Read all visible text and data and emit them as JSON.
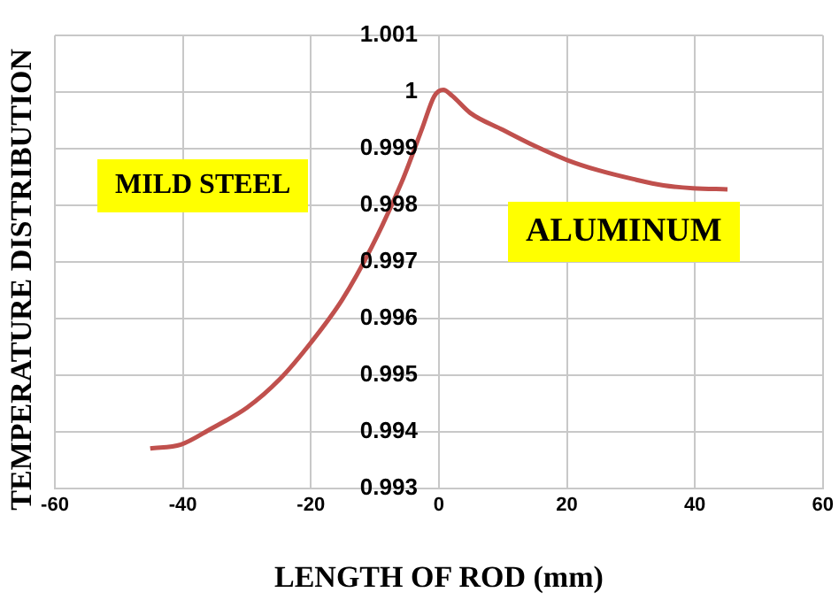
{
  "chart_data": {
    "type": "line",
    "xlabel": "LENGTH OF ROD (mm)",
    "ylabel": "TEMPERATURE DISTRIBUTION",
    "annotations": [
      "MILD STEEL",
      "ALUMINUM"
    ],
    "x": [
      -45.1,
      -40.3,
      -35.6,
      -30,
      -24.9,
      -20,
      -15.1,
      -10.5,
      -5.8,
      -2.6,
      -0.7,
      0.7,
      2.1,
      4.9,
      10,
      15.1,
      20.2,
      24.8,
      30.4,
      35.1,
      39.7,
      45.1
    ],
    "series": [
      {
        "color": "#c0504d",
        "values": [
          0.9937,
          0.99377,
          0.99405,
          0.99442,
          0.99492,
          0.99557,
          0.99633,
          0.99726,
          0.99841,
          0.99936,
          0.99993,
          1.00004,
          0.99993,
          0.99963,
          0.99933,
          0.99904,
          0.99879,
          0.99862,
          0.99846,
          0.99835,
          0.9983,
          0.99828
        ]
      }
    ],
    "xlim": [
      -60,
      60
    ],
    "xticks": [
      -60,
      -40,
      -20,
      0,
      20,
      40,
      60
    ],
    "ylim": [
      0.993,
      1.001
    ],
    "yticks": [
      0.993,
      0.994,
      0.995,
      0.996,
      0.997,
      0.998,
      0.999,
      1,
      1.001
    ],
    "grid": true,
    "legend": false,
    "marker": "none",
    "line_style": "solid"
  }
}
